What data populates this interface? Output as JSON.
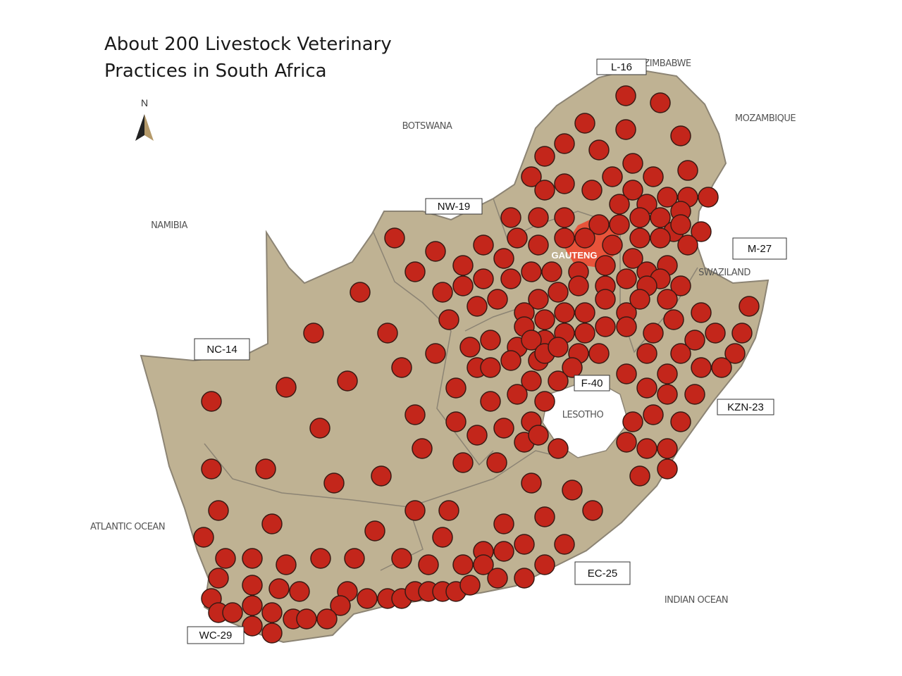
{
  "title_lines": [
    "About 200 Livestock Veterinary",
    "Practices in South Africa"
  ],
  "compass": "N",
  "place_labels": [
    "ZIMBABWE",
    "BOTSWANA",
    "MOZAMBIQUE",
    "NAMIBIA",
    "SWAZILAND",
    "LESOTHO",
    "ATLANTIC OCEAN",
    "INDIAN OCEAN",
    "GAUTENG"
  ],
  "province_labels": [
    "L-16",
    "NW-19",
    "M-27",
    "NC-14",
    "F-40",
    "KZN-23",
    "EC-25",
    "WC-29"
  ]
}
